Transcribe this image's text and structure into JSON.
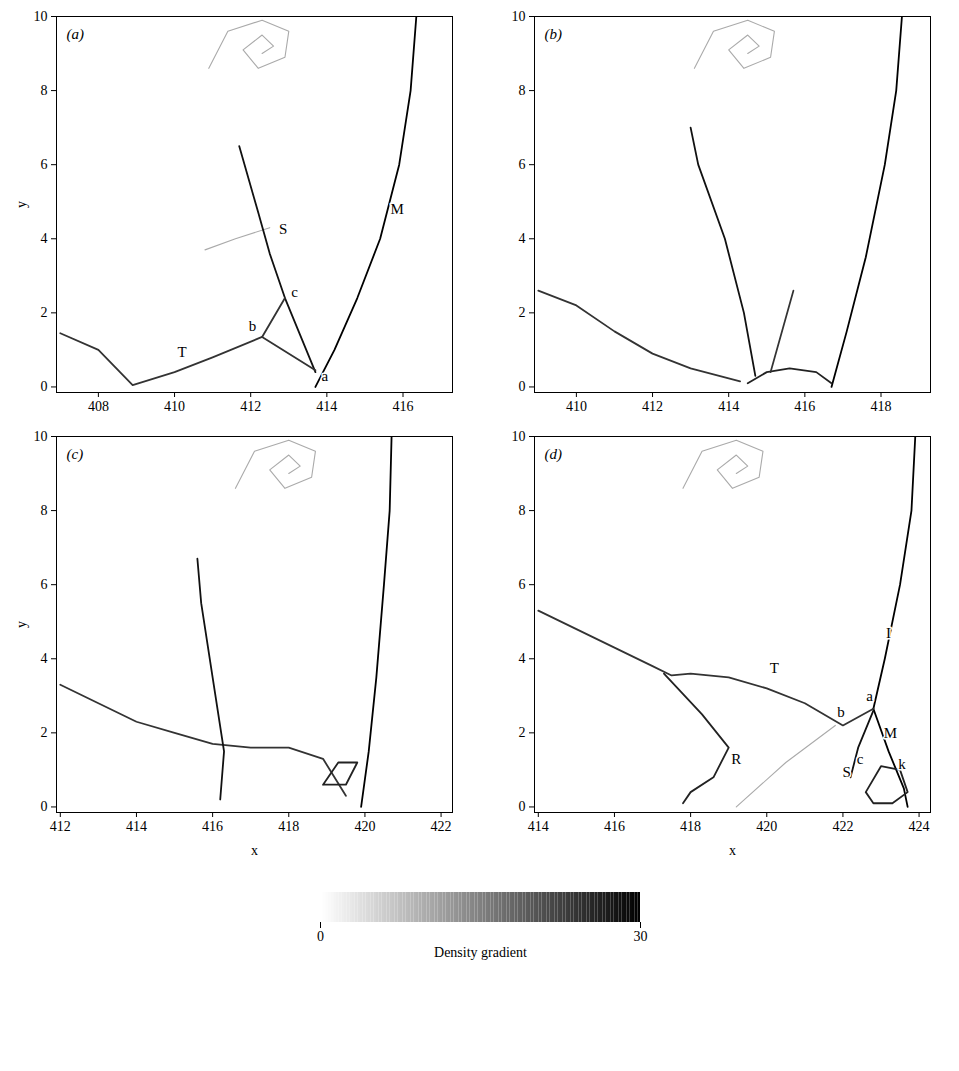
{
  "chart_data": [
    {
      "type": "line",
      "title": "(a)",
      "ylabel": "y",
      "xlim": [
        406.9,
        417.3
      ],
      "xticks": [
        408,
        410,
        412,
        414,
        416
      ],
      "ylim": [
        -0.15,
        10
      ],
      "yticks": [
        0,
        2,
        4,
        6,
        8,
        10
      ],
      "series": [
        {
          "color": "#000000",
          "x": [
            413.7,
            414.2,
            414.8,
            415.4,
            415.9,
            416.2,
            416.35
          ],
          "y": [
            0,
            1,
            2.4,
            4,
            6,
            8,
            10
          ]
        },
        {
          "color": "#111111",
          "x": [
            413.7,
            413.3,
            412.9,
            412.5,
            412.2,
            411.7
          ],
          "y": [
            0.4,
            1.4,
            2.4,
            3.6,
            4.7,
            6.5
          ]
        },
        {
          "color": "#333333",
          "x": [
            412.3,
            412.9
          ],
          "y": [
            1.35,
            2.4
          ]
        },
        {
          "color": "#333333",
          "x": [
            407,
            408,
            408.9,
            410,
            411,
            412.3,
            413.7
          ],
          "y": [
            1.45,
            1.0,
            0.05,
            0.4,
            0.8,
            1.35,
            0.45
          ]
        },
        {
          "color": "#aaaaaa",
          "x": [
            410.8,
            411.6,
            412.5
          ],
          "y": [
            3.7,
            4.0,
            4.3
          ]
        },
        {
          "color": "#aaaaaa",
          "x": [
            412.3,
            412.6,
            412.3,
            411.8,
            412.2,
            412.9,
            413.0,
            412.3,
            411.4,
            410.9
          ],
          "y": [
            9.0,
            9.2,
            9.5,
            9.1,
            8.6,
            8.9,
            9.6,
            9.9,
            9.6,
            8.6
          ]
        }
      ],
      "annotations": [
        {
          "text": "T",
          "x": 410.2,
          "y": 0.95
        },
        {
          "text": "b",
          "x": 412.05,
          "y": 1.65
        },
        {
          "text": "c",
          "x": 413.15,
          "y": 2.55
        },
        {
          "text": "a",
          "x": 413.95,
          "y": 0.3
        },
        {
          "text": "S",
          "x": 412.85,
          "y": 4.25
        },
        {
          "text": "M",
          "x": 415.85,
          "y": 4.8
        }
      ]
    },
    {
      "type": "line",
      "title": "(b)",
      "xlim": [
        408.9,
        419.3
      ],
      "xticks": [
        410,
        412,
        414,
        416,
        418
      ],
      "ylim": [
        -0.15,
        10
      ],
      "yticks": [
        0,
        2,
        4,
        6,
        8,
        10
      ],
      "series": [
        {
          "color": "#000000",
          "x": [
            416.7,
            417.1,
            417.6,
            418.1,
            418.4,
            418.55
          ],
          "y": [
            0,
            1.5,
            3.5,
            6,
            8,
            10
          ]
        },
        {
          "color": "#333333",
          "x": [
            409,
            410,
            411,
            412,
            413,
            414.3
          ],
          "y": [
            2.6,
            2.2,
            1.5,
            0.9,
            0.5,
            0.15
          ]
        },
        {
          "color": "#111111",
          "x": [
            414.7,
            414.4,
            413.9,
            413.2,
            413.0
          ],
          "y": [
            0.3,
            2,
            4,
            6,
            7
          ]
        },
        {
          "color": "#222222",
          "x": [
            414.5,
            415.0,
            415.6,
            416.3,
            416.7
          ],
          "y": [
            0.1,
            0.4,
            0.5,
            0.4,
            0.1
          ]
        },
        {
          "color": "#333333",
          "x": [
            415.1,
            415.7
          ],
          "y": [
            0.4,
            2.6
          ]
        },
        {
          "color": "#aaaaaa",
          "x": [
            414.5,
            414.8,
            414.5,
            414.0,
            414.4,
            415.1,
            415.2,
            414.5,
            413.6,
            413.1
          ],
          "y": [
            9.0,
            9.2,
            9.5,
            9.1,
            8.6,
            8.9,
            9.6,
            9.9,
            9.6,
            8.6
          ]
        }
      ],
      "annotations": []
    },
    {
      "type": "line",
      "title": "(c)",
      "xlabel": "x",
      "ylabel": "y",
      "xlim": [
        411.9,
        422.3
      ],
      "xticks": [
        412,
        414,
        416,
        418,
        420,
        422
      ],
      "ylim": [
        -0.15,
        10
      ],
      "yticks": [
        0,
        2,
        4,
        6,
        8,
        10
      ],
      "series": [
        {
          "color": "#000000",
          "x": [
            419.9,
            420.1,
            420.3,
            420.5,
            420.65,
            420.7
          ],
          "y": [
            0,
            1.5,
            3.5,
            6,
            8,
            10
          ]
        },
        {
          "color": "#333333",
          "x": [
            412,
            413,
            414,
            415,
            416,
            417,
            418,
            418.9,
            419.5
          ],
          "y": [
            3.3,
            2.8,
            2.3,
            2.0,
            1.7,
            1.6,
            1.6,
            1.3,
            0.3
          ]
        },
        {
          "color": "#111111",
          "x": [
            416.2,
            416.3,
            416.0,
            415.7,
            415.6
          ],
          "y": [
            0.2,
            1.5,
            3.5,
            5.5,
            6.7
          ]
        },
        {
          "color": "#222222",
          "x": [
            418.9,
            419.3,
            419.8,
            419.5,
            418.9
          ],
          "y": [
            0.6,
            1.2,
            1.2,
            0.6,
            0.6
          ]
        },
        {
          "color": "#aaaaaa",
          "x": [
            418.0,
            418.3,
            418.0,
            417.5,
            417.9,
            418.6,
            418.7,
            418.0,
            417.1,
            416.6
          ],
          "y": [
            9.0,
            9.2,
            9.5,
            9.1,
            8.6,
            8.9,
            9.6,
            9.9,
            9.6,
            8.6
          ]
        }
      ],
      "annotations": []
    },
    {
      "type": "line",
      "title": "(d)",
      "xlabel": "x",
      "xlim": [
        413.9,
        424.3
      ],
      "xticks": [
        414,
        416,
        418,
        420,
        422,
        424
      ],
      "ylim": [
        -0.15,
        10
      ],
      "yticks": [
        0,
        2,
        4,
        6,
        8,
        10
      ],
      "series": [
        {
          "color": "#000000",
          "x": [
            422.8,
            423.1,
            423.5,
            423.8,
            423.9
          ],
          "y": [
            2.65,
            4,
            6,
            8,
            10
          ]
        },
        {
          "color": "#000000",
          "x": [
            422.8,
            423.2,
            423.6,
            423.7
          ],
          "y": [
            2.65,
            1.5,
            0.5,
            0
          ]
        },
        {
          "color": "#333333",
          "x": [
            414,
            415,
            416,
            417,
            417.5,
            418,
            419,
            420,
            421,
            422,
            422.8
          ],
          "y": [
            5.3,
            4.8,
            4.3,
            3.8,
            3.55,
            3.6,
            3.5,
            3.2,
            2.8,
            2.2,
            2.65
          ]
        },
        {
          "color": "#111111",
          "x": [
            422.8,
            422.4,
            422.2
          ],
          "y": [
            2.6,
            1.6,
            0.8
          ]
        },
        {
          "color": "#222222",
          "x": [
            417.3,
            418.3,
            419.0,
            418.6,
            418.0,
            417.8
          ],
          "y": [
            3.6,
            2.5,
            1.6,
            0.8,
            0.4,
            0.1
          ]
        },
        {
          "color": "#222222",
          "x": [
            422.6,
            423.0,
            423.5,
            423.7,
            423.3,
            422.8,
            422.6
          ],
          "y": [
            0.4,
            1.1,
            1.0,
            0.4,
            0.1,
            0.1,
            0.4
          ]
        },
        {
          "color": "#aaaaaa",
          "x": [
            419.2,
            420.5,
            421.8
          ],
          "y": [
            0,
            1.2,
            2.2
          ]
        },
        {
          "color": "#aaaaaa",
          "x": [
            419.2,
            419.5,
            419.2,
            418.7,
            419.1,
            419.8,
            419.9,
            419.2,
            418.3,
            417.8
          ],
          "y": [
            9.0,
            9.2,
            9.5,
            9.1,
            8.6,
            8.9,
            9.6,
            9.9,
            9.6,
            8.6
          ]
        }
      ],
      "annotations": [
        {
          "text": "I",
          "x": 423.2,
          "y": 4.7
        },
        {
          "text": "T",
          "x": 420.2,
          "y": 3.75
        },
        {
          "text": "b",
          "x": 421.95,
          "y": 2.55
        },
        {
          "text": "a",
          "x": 422.7,
          "y": 3.0
        },
        {
          "text": "M",
          "x": 423.25,
          "y": 2.0
        },
        {
          "text": "c",
          "x": 422.45,
          "y": 1.3
        },
        {
          "text": "S",
          "x": 422.1,
          "y": 0.95
        },
        {
          "text": "k",
          "x": 423.55,
          "y": 1.15
        },
        {
          "text": "R",
          "x": 419.2,
          "y": 1.3
        }
      ]
    }
  ],
  "colorbar": {
    "range": [
      0,
      30
    ],
    "ticks": [
      0,
      30
    ],
    "label": "Density gradient"
  }
}
